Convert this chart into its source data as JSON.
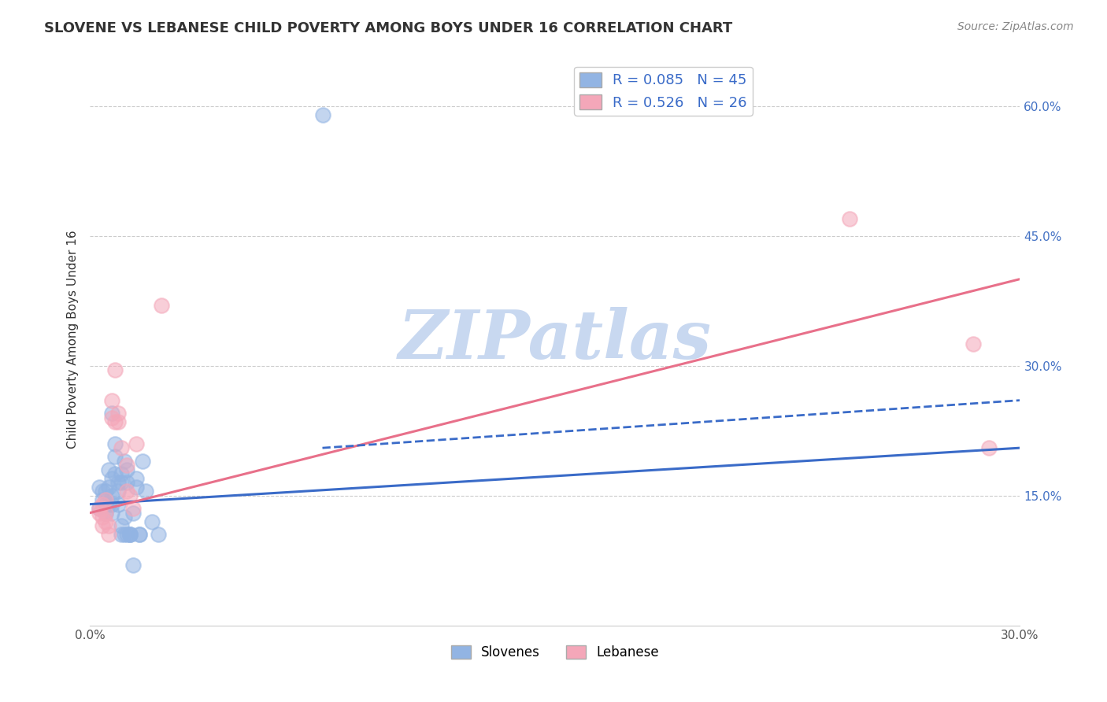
{
  "title": "SLOVENE VS LEBANESE CHILD POVERTY AMONG BOYS UNDER 16 CORRELATION CHART",
  "source": "Source: ZipAtlas.com",
  "ylabel": "Child Poverty Among Boys Under 16",
  "x_min": 0.0,
  "x_max": 0.3,
  "y_min": 0.0,
  "y_max": 0.66,
  "x_ticks": [
    0.0,
    0.05,
    0.1,
    0.15,
    0.2,
    0.25,
    0.3
  ],
  "x_tick_labels": [
    "0.0%",
    "",
    "",
    "",
    "",
    "",
    "30.0%"
  ],
  "y_ticks_right": [
    0.15,
    0.3,
    0.45,
    0.6
  ],
  "y_tick_labels_right": [
    "15.0%",
    "30.0%",
    "45.0%",
    "60.0%"
  ],
  "slovene_color": "#92b4e3",
  "lebanese_color": "#f4a7b9",
  "slovene_line_color": "#3a6bc8",
  "lebanese_line_color": "#e8708a",
  "watermark_color": "#c8d8f0",
  "slovene_points": [
    [
      0.003,
      0.135
    ],
    [
      0.003,
      0.16
    ],
    [
      0.004,
      0.155
    ],
    [
      0.004,
      0.145
    ],
    [
      0.005,
      0.14
    ],
    [
      0.005,
      0.155
    ],
    [
      0.005,
      0.13
    ],
    [
      0.006,
      0.18
    ],
    [
      0.006,
      0.16
    ],
    [
      0.006,
      0.14
    ],
    [
      0.007,
      0.245
    ],
    [
      0.007,
      0.17
    ],
    [
      0.007,
      0.14
    ],
    [
      0.007,
      0.13
    ],
    [
      0.007,
      0.15
    ],
    [
      0.008,
      0.21
    ],
    [
      0.008,
      0.195
    ],
    [
      0.008,
      0.175
    ],
    [
      0.009,
      0.165
    ],
    [
      0.009,
      0.155
    ],
    [
      0.009,
      0.14
    ],
    [
      0.01,
      0.175
    ],
    [
      0.01,
      0.165
    ],
    [
      0.01,
      0.115
    ],
    [
      0.01,
      0.105
    ],
    [
      0.011,
      0.19
    ],
    [
      0.011,
      0.125
    ],
    [
      0.011,
      0.105
    ],
    [
      0.012,
      0.165
    ],
    [
      0.012,
      0.18
    ],
    [
      0.012,
      0.105
    ],
    [
      0.013,
      0.105
    ],
    [
      0.013,
      0.105
    ],
    [
      0.013,
      0.105
    ],
    [
      0.014,
      0.07
    ],
    [
      0.014,
      0.13
    ],
    [
      0.015,
      0.17
    ],
    [
      0.015,
      0.16
    ],
    [
      0.016,
      0.105
    ],
    [
      0.016,
      0.105
    ],
    [
      0.017,
      0.19
    ],
    [
      0.018,
      0.155
    ],
    [
      0.02,
      0.12
    ],
    [
      0.022,
      0.105
    ],
    [
      0.075,
      0.59
    ]
  ],
  "lebanese_points": [
    [
      0.003,
      0.135
    ],
    [
      0.003,
      0.13
    ],
    [
      0.004,
      0.14
    ],
    [
      0.004,
      0.125
    ],
    [
      0.004,
      0.115
    ],
    [
      0.005,
      0.145
    ],
    [
      0.005,
      0.13
    ],
    [
      0.005,
      0.12
    ],
    [
      0.006,
      0.115
    ],
    [
      0.006,
      0.105
    ],
    [
      0.007,
      0.24
    ],
    [
      0.007,
      0.26
    ],
    [
      0.008,
      0.295
    ],
    [
      0.008,
      0.235
    ],
    [
      0.009,
      0.245
    ],
    [
      0.009,
      0.235
    ],
    [
      0.01,
      0.205
    ],
    [
      0.012,
      0.185
    ],
    [
      0.012,
      0.155
    ],
    [
      0.013,
      0.15
    ],
    [
      0.014,
      0.135
    ],
    [
      0.015,
      0.21
    ],
    [
      0.023,
      0.37
    ],
    [
      0.245,
      0.47
    ],
    [
      0.285,
      0.325
    ],
    [
      0.29,
      0.205
    ]
  ],
  "slovene_reg": [
    0.0,
    0.3,
    0.14,
    0.205
  ],
  "lebanese_reg": [
    0.0,
    0.3,
    0.13,
    0.4
  ],
  "slovene_ext": [
    0.075,
    0.3,
    0.205,
    0.26
  ]
}
